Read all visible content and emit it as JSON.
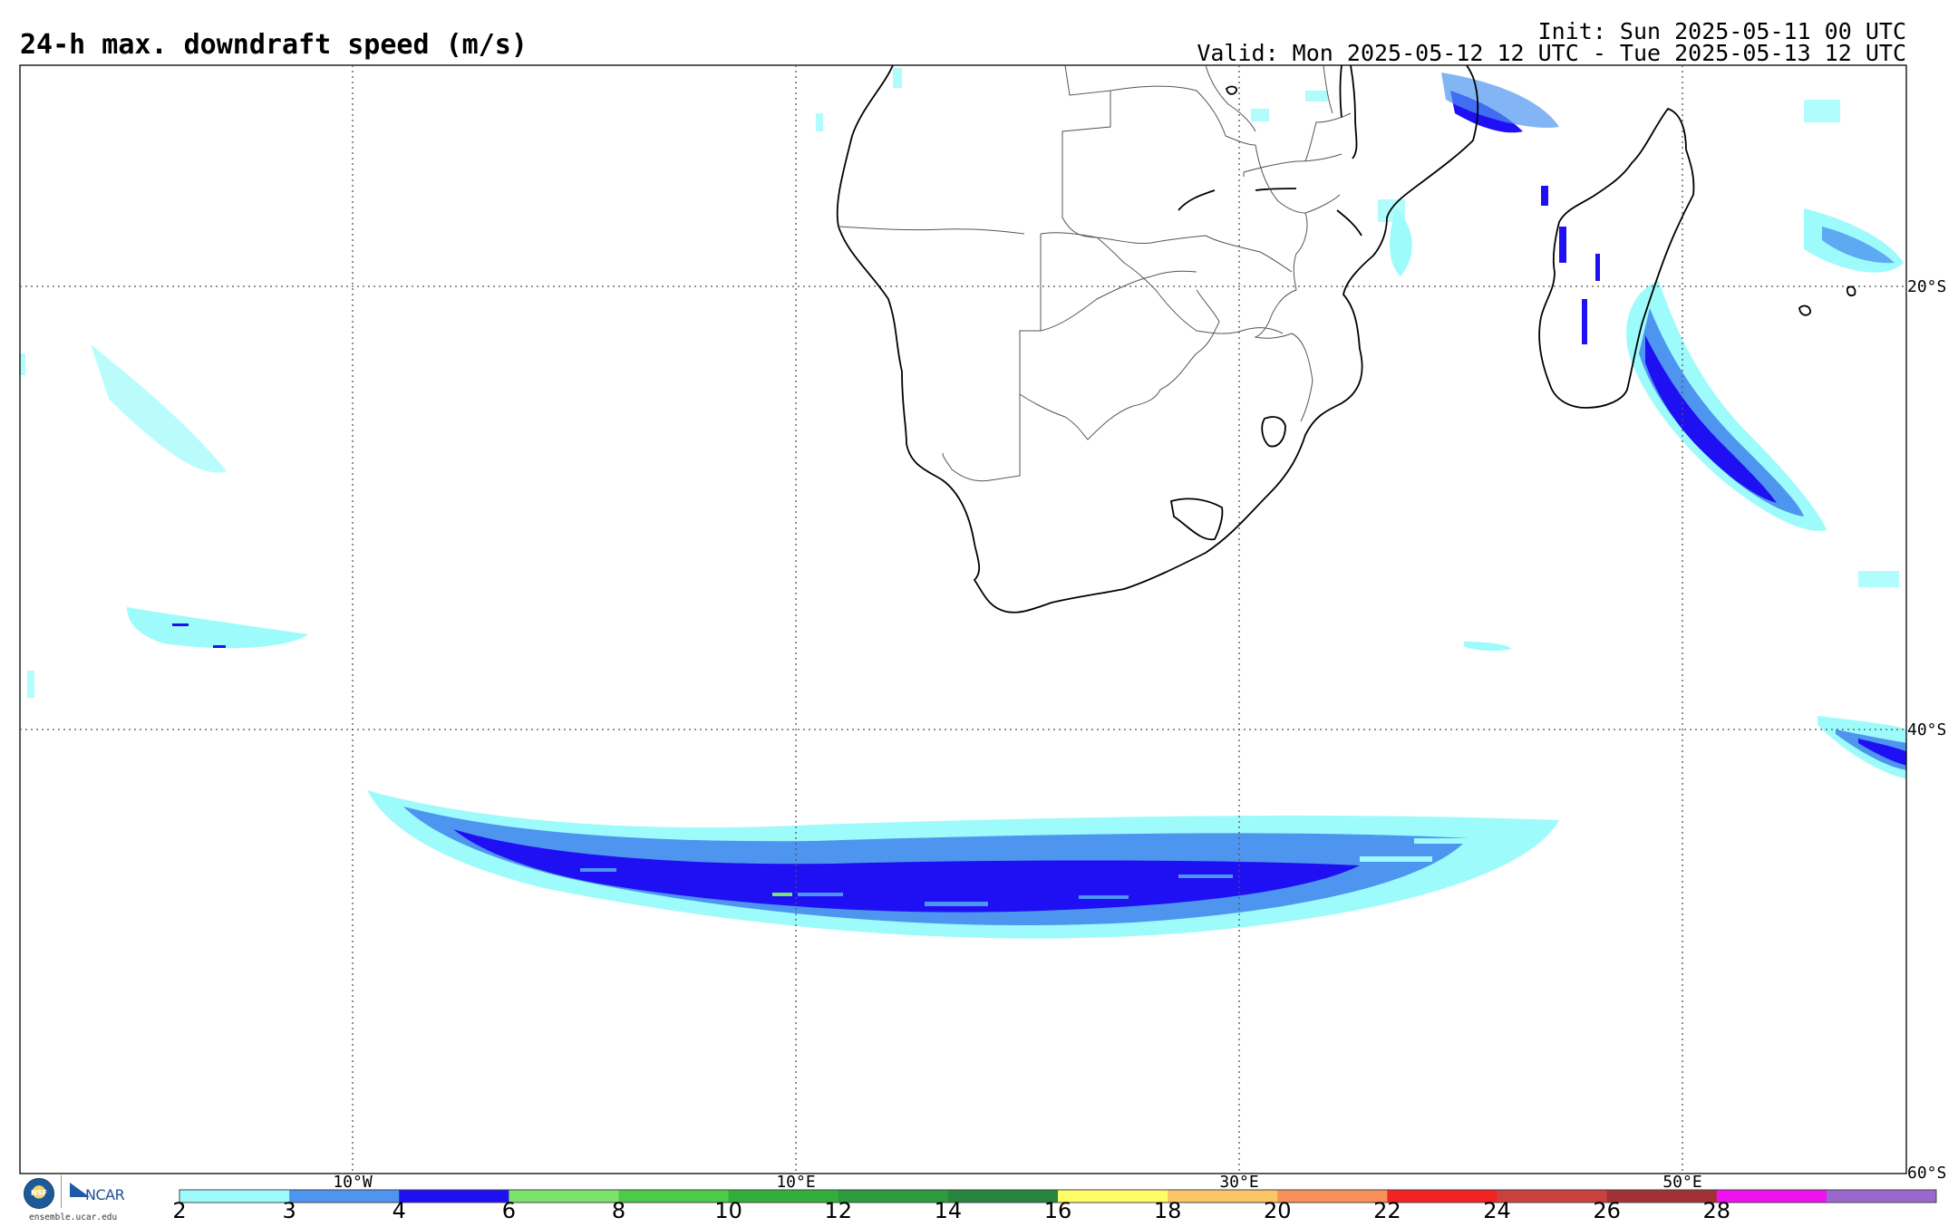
{
  "header": {
    "title": "24-h max. downdraft speed (m/s)",
    "init": "Init: Sun 2025-05-11 00 UTC",
    "valid": "Valid: Mon 2025-05-12 12 UTC - Tue 2025-05-13 12 UTC"
  },
  "map": {
    "region": "Southern Africa and South Atlantic / Indian Ocean",
    "lat_labels": [
      "20°S",
      "40°S",
      "60°S"
    ],
    "lon_labels": [
      "10°W",
      "10°E",
      "30°E",
      "50°E"
    ]
  },
  "colorbar": {
    "units": "m/s",
    "ticks": [
      "2",
      "3",
      "4",
      "6",
      "8",
      "10",
      "12",
      "14",
      "16",
      "18",
      "20",
      "22",
      "24",
      "26",
      "28"
    ],
    "colors": [
      "#9dfbfb",
      "#4e95f0",
      "#1f10f4",
      "#7ae36a",
      "#4ccb48",
      "#33ae3a",
      "#2d9a40",
      "#25853e",
      "#fefe64",
      "#fcc666",
      "#f99057",
      "#f42323",
      "#cb3f3f",
      "#a03233",
      "#ee10ee",
      "#9a67cf"
    ]
  },
  "logos": {
    "nsf": "NSF",
    "ncar": "NCAR",
    "site": "ensemble.ucar.edu"
  }
}
